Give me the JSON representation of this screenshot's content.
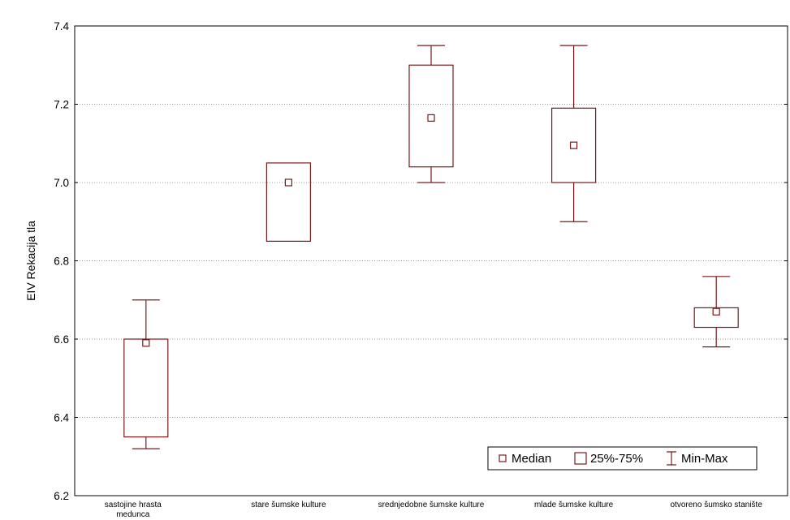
{
  "chart_data": {
    "type": "boxplot",
    "title": "",
    "xlabel": "",
    "ylabel": "EIV Rekacija tla",
    "ylim": [
      6.2,
      7.4
    ],
    "yticks": [
      "6.2",
      "6.4",
      "6.6",
      "6.8",
      "7.0",
      "7.2",
      "7.4"
    ],
    "grid": true,
    "legend_position": "bottom-right",
    "categories": [
      {
        "lines": [
          "sastojine hrasta",
          "medunca"
        ]
      },
      {
        "lines": [
          "stare šumske kulture"
        ]
      },
      {
        "lines": [
          "srednjedobne šumske kulture"
        ]
      },
      {
        "lines": [
          "mlade šumske kulture"
        ]
      },
      {
        "lines": [
          "otvoreno šumsko stanište"
        ]
      }
    ],
    "boxes": [
      {
        "min": 6.32,
        "q1": 6.35,
        "median": 6.59,
        "q3": 6.6,
        "max": 6.7
      },
      {
        "min": 6.85,
        "q1": 6.85,
        "median": 7.0,
        "q3": 7.05,
        "max": 7.05
      },
      {
        "min": 7.0,
        "q1": 7.04,
        "median": 7.165,
        "q3": 7.3,
        "max": 7.35
      },
      {
        "min": 6.9,
        "q1": 7.0,
        "median": 7.095,
        "q3": 7.19,
        "max": 7.35
      },
      {
        "min": 6.58,
        "q1": 6.63,
        "median": 6.67,
        "q3": 6.68,
        "max": 6.76
      }
    ],
    "legend": {
      "median": "Median",
      "box": "25%-75%",
      "whisker": "Min-Max"
    },
    "colors": {
      "box": "#7b1a1a",
      "grid": "#9a9a9a",
      "axis": "#000000"
    }
  }
}
